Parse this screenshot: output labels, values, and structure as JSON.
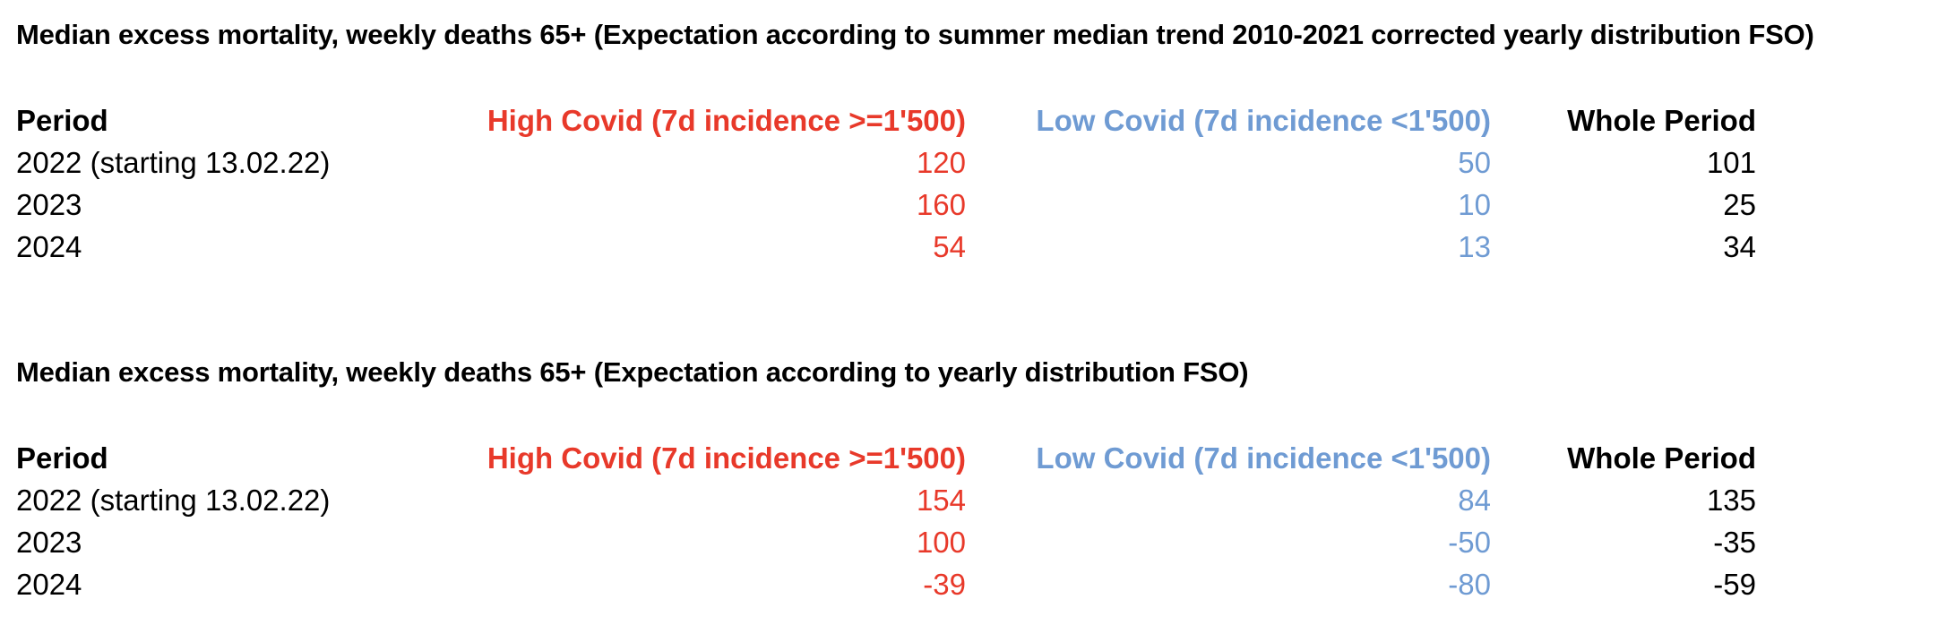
{
  "colors": {
    "high_covid": "#e8392a",
    "low_covid": "#6f9bd3",
    "text": "#000000"
  },
  "tables": [
    {
      "title": "Median excess mortality, weekly deaths 65+ (Expectation according to summer median trend 2010-2021 corrected yearly distribution FSO)",
      "headers": {
        "period": "Period",
        "high": "High Covid (7d incidence >=1'500)",
        "low": "Low Covid (7d incidence <1'500)",
        "whole": "Whole Period"
      },
      "rows": [
        {
          "period": "2022 (starting 13.02.22)",
          "high": "120",
          "low": "50",
          "whole": "101"
        },
        {
          "period": "2023",
          "high": "160",
          "low": "10",
          "whole": "25"
        },
        {
          "period": "2024",
          "high": "54",
          "low": "13",
          "whole": "34"
        }
      ]
    },
    {
      "title": "Median excess mortality, weekly deaths 65+ (Expectation according to yearly distribution FSO)",
      "headers": {
        "period": "Period",
        "high": "High Covid (7d incidence >=1'500)",
        "low": "Low Covid (7d incidence <1'500)",
        "whole": "Whole Period"
      },
      "rows": [
        {
          "period": "2022 (starting 13.02.22)",
          "high": "154",
          "low": "84",
          "whole": "135"
        },
        {
          "period": "2023",
          "high": "100",
          "low": "-50",
          "whole": "-35"
        },
        {
          "period": "2024",
          "high": "-39",
          "low": "-80",
          "whole": "-59"
        }
      ]
    }
  ]
}
